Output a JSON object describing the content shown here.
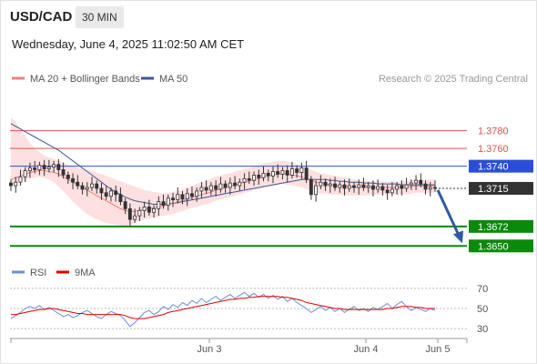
{
  "header": {
    "symbol": "USD/CAD",
    "timeframe": "30 MIN",
    "datetime": "Wednesday, June 4, 2025 11:02:50 AM CET"
  },
  "colors": {
    "resistance": "#d9534f",
    "pivot": "#2a4fd6",
    "support": "#0a8a0a",
    "price": "#333333",
    "ma20": "#f08080",
    "ma50": "#3b5998",
    "band": "#ffe0e0",
    "arrow": "#2f5b9e",
    "rsi": "#6b8ee0",
    "rsi_ma": "#e00000"
  },
  "chart_data": [
    {
      "type": "candlestick",
      "legend": [
        "MA 20 + Bollinger Bands",
        "MA 50"
      ],
      "legend_position": "top-left",
      "credit": "Research © 2025 Trading Central",
      "ylim": [
        1.364,
        1.383
      ],
      "levels": [
        {
          "value": 1.378,
          "label": "1.3780",
          "kind": "resistance"
        },
        {
          "value": 1.376,
          "label": "1.3760",
          "kind": "resistance"
        },
        {
          "value": 1.374,
          "label": "1.3740",
          "kind": "pivot"
        },
        {
          "value": 1.3715,
          "label": "1.3715",
          "kind": "price"
        },
        {
          "value": 1.3672,
          "label": "1.3672",
          "kind": "support"
        },
        {
          "value": 1.365,
          "label": "1.3650",
          "kind": "support"
        }
      ],
      "x_ticks": [
        "Jun 3",
        "Jun 4",
        "Jun 5"
      ],
      "close": [
        1.3718,
        1.3722,
        1.3728,
        1.3735,
        1.3738,
        1.3736,
        1.3741,
        1.3737,
        1.3739,
        1.3742,
        1.3736,
        1.373,
        1.3726,
        1.3722,
        1.3718,
        1.3714,
        1.3716,
        1.372,
        1.3715,
        1.371,
        1.3706,
        1.3712,
        1.3708,
        1.37,
        1.3692,
        1.368,
        1.3684,
        1.369,
        1.3694,
        1.3688,
        1.3692,
        1.37,
        1.3696,
        1.3704,
        1.3702,
        1.3708,
        1.3703,
        1.3709,
        1.3706,
        1.3712,
        1.3716,
        1.3713,
        1.3718,
        1.3714,
        1.372,
        1.3716,
        1.3721,
        1.3718,
        1.3722,
        1.3726,
        1.3724,
        1.373,
        1.3727,
        1.3732,
        1.3729,
        1.3734,
        1.3731,
        1.3735,
        1.373,
        1.3737,
        1.3733,
        1.3738,
        1.3725,
        1.3708,
        1.3718,
        1.3722,
        1.3718,
        1.372,
        1.3716,
        1.3719,
        1.3715,
        1.3718,
        1.3716,
        1.3719,
        1.3716,
        1.3718,
        1.3714,
        1.3717,
        1.3713,
        1.371,
        1.3714,
        1.3718,
        1.3715,
        1.3719,
        1.3721,
        1.3724,
        1.372,
        1.3714,
        1.3716,
        1.3715
      ],
      "ma20": [
        1.3725,
        1.3727,
        1.3729,
        1.3731,
        1.3733,
        1.3734,
        1.3735,
        1.3735,
        1.3734,
        1.3733,
        1.3731,
        1.3728,
        1.3725,
        1.3722,
        1.3719,
        1.3716,
        1.3713,
        1.371,
        1.3707,
        1.3704,
        1.3701,
        1.3698,
        1.3695,
        1.3692,
        1.369,
        1.3689,
        1.3689,
        1.369,
        1.3691,
        1.3692,
        1.3693,
        1.3694,
        1.3695,
        1.3697,
        1.3698,
        1.37,
        1.3701,
        1.3703,
        1.3705,
        1.3706,
        1.3708,
        1.3709,
        1.3711,
        1.3713,
        1.3714,
        1.3716,
        1.3717,
        1.3719,
        1.372,
        1.3722,
        1.3723,
        1.3725,
        1.3726,
        1.3728,
        1.3729,
        1.373,
        1.3731,
        1.3732,
        1.3731,
        1.373,
        1.3729,
        1.3728,
        1.3726,
        1.3724,
        1.3722,
        1.3721,
        1.372,
        1.3719,
        1.3718,
        1.3718,
        1.3717,
        1.3717,
        1.3716,
        1.3716,
        1.3716,
        1.3716,
        1.3716,
        1.3716,
        1.3716,
        1.3716,
        1.3716,
        1.3716,
        1.3716,
        1.3716,
        1.3717,
        1.3718,
        1.3718,
        1.3718,
        1.3718,
        1.3718
      ],
      "ma50": [
        1.3788,
        1.3785,
        1.3782,
        1.3779,
        1.3776,
        1.3773,
        1.377,
        1.3767,
        1.3764,
        1.3761,
        1.3758,
        1.3754,
        1.375,
        1.3746,
        1.3742,
        1.3738,
        1.3734,
        1.373,
        1.3726,
        1.3722,
        1.3718,
        1.3714,
        1.3711,
        1.3708,
        1.3705,
        1.3703,
        1.3701,
        1.37,
        1.3699,
        1.3698,
        1.3697,
        1.3697,
        1.3697,
        1.3698,
        1.3698,
        1.3699,
        1.37,
        1.3701,
        1.3702,
        1.3703,
        1.3704,
        1.3705,
        1.3706,
        1.3707,
        1.3708,
        1.3709,
        1.371,
        1.3711,
        1.3712,
        1.3713,
        1.3714,
        1.3715,
        1.3716,
        1.3717,
        1.3718,
        1.3719,
        1.372,
        1.3721,
        1.3722,
        1.3723,
        1.3724,
        1.3725,
        1.3725,
        1.3725,
        1.3725,
        1.3725,
        1.3725,
        1.3724,
        1.3724,
        1.3723,
        1.3723,
        1.3722,
        1.3722,
        1.3722,
        1.3721,
        1.3721,
        1.3721,
        1.372,
        1.372,
        1.372,
        1.372,
        1.372,
        1.3719,
        1.3719,
        1.3719,
        1.3719,
        1.3719,
        1.3719,
        1.3719,
        1.3719
      ],
      "bb_upper": [
        1.3795,
        1.379,
        1.3782,
        1.3774,
        1.3766,
        1.376,
        1.3756,
        1.3752,
        1.375,
        1.3748,
        1.3746,
        1.3744,
        1.3742,
        1.374,
        1.3738,
        1.3737,
        1.3736,
        1.3735,
        1.3733,
        1.3731,
        1.3729,
        1.3727,
        1.3725,
        1.3723,
        1.3721,
        1.3719,
        1.3717,
        1.3715,
        1.3713,
        1.3712,
        1.3711,
        1.371,
        1.3709,
        1.371,
        1.3711,
        1.3712,
        1.3714,
        1.3716,
        1.3718,
        1.372,
        1.3722,
        1.3724,
        1.3726,
        1.3728,
        1.3729,
        1.3731,
        1.3732,
        1.3734,
        1.3735,
        1.3737,
        1.3738,
        1.374,
        1.3741,
        1.3743,
        1.3744,
        1.3745,
        1.3746,
        1.3746,
        1.3745,
        1.3744,
        1.3742,
        1.374,
        1.3738,
        1.3736,
        1.3734,
        1.3732,
        1.3731,
        1.373,
        1.3729,
        1.3728,
        1.3727,
        1.3726,
        1.3725,
        1.3724,
        1.3724,
        1.3723,
        1.3723,
        1.3723,
        1.3723,
        1.3723,
        1.3723,
        1.3723,
        1.3723,
        1.3723,
        1.3724,
        1.3725,
        1.3725,
        1.3725,
        1.3725,
        1.3725
      ],
      "bb_lower": [
        1.3718,
        1.372,
        1.3722,
        1.3724,
        1.3726,
        1.3727,
        1.3728,
        1.3727,
        1.3725,
        1.3722,
        1.3717,
        1.3712,
        1.3706,
        1.37,
        1.3695,
        1.369,
        1.3686,
        1.3683,
        1.368,
        1.3678,
        1.3676,
        1.3675,
        1.3674,
        1.3673,
        1.3673,
        1.3674,
        1.3676,
        1.3678,
        1.368,
        1.3681,
        1.3682,
        1.3683,
        1.3684,
        1.3685,
        1.3686,
        1.3688,
        1.3689,
        1.3691,
        1.3693,
        1.3694,
        1.3696,
        1.3697,
        1.3699,
        1.3701,
        1.3702,
        1.3704,
        1.3705,
        1.3707,
        1.3708,
        1.371,
        1.3711,
        1.3713,
        1.3714,
        1.3716,
        1.3717,
        1.3718,
        1.3719,
        1.372,
        1.3719,
        1.3718,
        1.3717,
        1.3716,
        1.3714,
        1.3712,
        1.371,
        1.3709,
        1.3709,
        1.3708,
        1.3708,
        1.3708,
        1.3707,
        1.3707,
        1.3707,
        1.3707,
        1.3707,
        1.3707,
        1.3708,
        1.3708,
        1.3708,
        1.3708,
        1.3708,
        1.3708,
        1.3708,
        1.3708,
        1.3709,
        1.371,
        1.371,
        1.371,
        1.371,
        1.371
      ],
      "forecast_arrow": {
        "from": 1.3713,
        "to": 1.3655
      }
    },
    {
      "type": "line",
      "legend": [
        "RSI",
        "9MA"
      ],
      "legend_position": "top-left",
      "ylim": [
        22,
        78
      ],
      "y_ticks": [
        70,
        50,
        30
      ],
      "rsi": [
        40,
        43,
        46,
        50,
        52,
        50,
        53,
        49,
        51,
        48,
        45,
        42,
        44,
        41,
        43,
        46,
        48,
        45,
        42,
        40,
        44,
        47,
        45,
        43,
        38,
        32,
        36,
        41,
        46,
        48,
        44,
        47,
        52,
        49,
        54,
        51,
        56,
        53,
        58,
        55,
        60,
        56,
        59,
        62,
        58,
        61,
        64,
        60,
        63,
        66,
        62,
        65,
        61,
        64,
        60,
        63,
        59,
        62,
        57,
        60,
        56,
        53,
        50,
        46,
        49,
        52,
        48,
        51,
        47,
        50,
        46,
        49,
        52,
        48,
        50,
        47,
        51,
        49,
        52,
        55,
        50,
        54,
        57,
        52,
        48,
        51,
        49,
        47,
        50,
        48
      ],
      "ma9": [
        44,
        44,
        45,
        46,
        47,
        48,
        49,
        49,
        50,
        50,
        49,
        48,
        47,
        46,
        45,
        45,
        44,
        44,
        44,
        44,
        44,
        44,
        44,
        44,
        43,
        41,
        40,
        40,
        40,
        41,
        42,
        43,
        44,
        46,
        47,
        48,
        49,
        50,
        51,
        52,
        53,
        54,
        55,
        56,
        57,
        58,
        59,
        59,
        60,
        60,
        61,
        61,
        62,
        62,
        62,
        62,
        62,
        61,
        61,
        60,
        59,
        58,
        56,
        55,
        54,
        53,
        52,
        51,
        50,
        50,
        49,
        49,
        49,
        49,
        49,
        49,
        49,
        49,
        49,
        50,
        50,
        51,
        52,
        52,
        52,
        51,
        51,
        50,
        50,
        50
      ]
    }
  ]
}
